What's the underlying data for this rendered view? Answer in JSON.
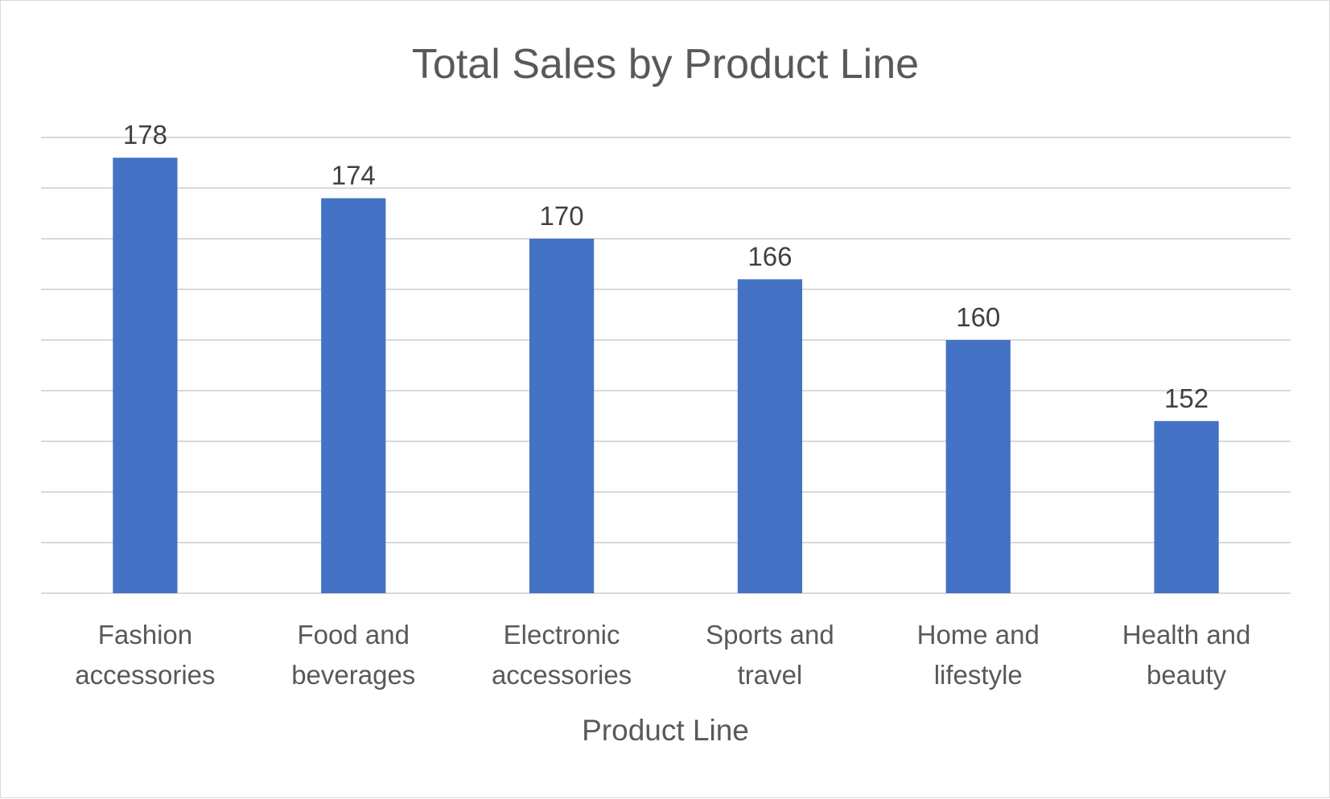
{
  "chart_data": {
    "type": "bar",
    "title": "Total Sales by Product Line",
    "xlabel": "Product Line",
    "ylabel": "",
    "categories": [
      [
        "Fashion",
        "accessories"
      ],
      [
        "Food and",
        "beverages"
      ],
      [
        "Electronic",
        "accessories"
      ],
      [
        "Sports and",
        "travel"
      ],
      [
        "Home and",
        "lifestyle"
      ],
      [
        "Health and",
        "beauty"
      ]
    ],
    "values": [
      178,
      174,
      170,
      166,
      160,
      152
    ],
    "ylim": [
      135,
      180
    ],
    "y_gridline_step": 5,
    "y_axis_labels_visible": false,
    "data_labels": true,
    "grid": true,
    "legend": "none",
    "colors": {
      "bar": "#4472c4",
      "gridline": "#d9d9d9",
      "title": "#595959",
      "data_label": "#404040",
      "tick_label": "#595959"
    }
  }
}
